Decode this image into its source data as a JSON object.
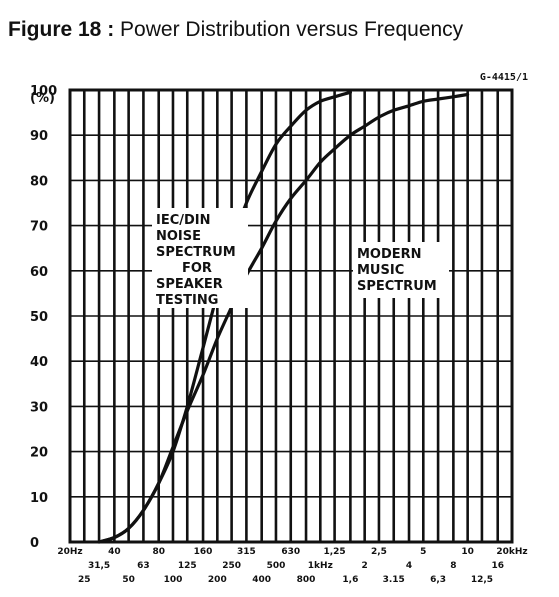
{
  "figure": {
    "label": "Figure 18 :",
    "text": "Power Distribution versus Frequency",
    "code": "G-4415/1"
  },
  "chart_data": {
    "type": "line",
    "ylabel": "(%)",
    "ylim": [
      0,
      100
    ],
    "yticks": [
      "0",
      "10",
      "20",
      "30",
      "40",
      "50",
      "60",
      "70",
      "80",
      "90",
      "100"
    ],
    "xscale": "log",
    "xlim_hz": [
      20,
      20000
    ],
    "xticks_upper": [
      {
        "hz": 20,
        "label": "20Hz"
      },
      {
        "hz": 40,
        "label": "40"
      },
      {
        "hz": 80,
        "label": "80"
      },
      {
        "hz": 160,
        "label": "160"
      },
      {
        "hz": 315,
        "label": "315"
      },
      {
        "hz": 630,
        "label": "630"
      },
      {
        "hz": 1250,
        "label": "1,25"
      },
      {
        "hz": 2500,
        "label": "2,5"
      },
      {
        "hz": 5000,
        "label": "5"
      },
      {
        "hz": 10000,
        "label": "10"
      },
      {
        "hz": 20000,
        "label": "20kHz"
      }
    ],
    "xticks_middle": [
      {
        "hz": 31.5,
        "label": "31,5"
      },
      {
        "hz": 63,
        "label": "63"
      },
      {
        "hz": 125,
        "label": "125"
      },
      {
        "hz": 250,
        "label": "250"
      },
      {
        "hz": 500,
        "label": "500"
      },
      {
        "hz": 1000,
        "label": "1kHz"
      },
      {
        "hz": 2000,
        "label": "2"
      },
      {
        "hz": 4000,
        "label": "4"
      },
      {
        "hz": 8000,
        "label": "8"
      },
      {
        "hz": 16000,
        "label": "16"
      }
    ],
    "xticks_lower": [
      {
        "hz": 25,
        "label": "25"
      },
      {
        "hz": 50,
        "label": "50"
      },
      {
        "hz": 100,
        "label": "100"
      },
      {
        "hz": 200,
        "label": "200"
      },
      {
        "hz": 400,
        "label": "400"
      },
      {
        "hz": 800,
        "label": "800"
      },
      {
        "hz": 1600,
        "label": "1,6"
      },
      {
        "hz": 3150,
        "label": "3.15"
      },
      {
        "hz": 6300,
        "label": "6,3"
      },
      {
        "hz": 12500,
        "label": "12,5"
      }
    ],
    "grid": true,
    "series": [
      {
        "name": "IEC/DIN NOISE SPECTRUM FOR SPEAKER TESTING",
        "label_lines": [
          "IEC/DIN",
          "NOISE",
          "SPECTRUM",
          "FOR",
          "SPEAKER",
          "TESTING"
        ],
        "points": [
          [
            31.5,
            0
          ],
          [
            40,
            1
          ],
          [
            50,
            3
          ],
          [
            63,
            7
          ],
          [
            80,
            13
          ],
          [
            100,
            20
          ],
          [
            125,
            30
          ],
          [
            160,
            43
          ],
          [
            200,
            55
          ],
          [
            250,
            66
          ],
          [
            315,
            75
          ],
          [
            400,
            82
          ],
          [
            500,
            88
          ],
          [
            630,
            92
          ],
          [
            800,
            95.5
          ],
          [
            1000,
            97.5
          ],
          [
            1250,
            98.5
          ],
          [
            1600,
            99.5
          ]
        ]
      },
      {
        "name": "MODERN MUSIC SPECTRUM",
        "label_lines": [
          "MODERN",
          "MUSIC",
          "SPECTRUM"
        ],
        "points": [
          [
            31.5,
            0
          ],
          [
            40,
            1
          ],
          [
            50,
            3
          ],
          [
            63,
            7
          ],
          [
            80,
            13
          ],
          [
            100,
            21
          ],
          [
            125,
            29
          ],
          [
            160,
            37
          ],
          [
            200,
            45
          ],
          [
            250,
            52
          ],
          [
            315,
            59
          ],
          [
            400,
            65
          ],
          [
            500,
            71
          ],
          [
            630,
            76
          ],
          [
            800,
            80
          ],
          [
            1000,
            84
          ],
          [
            1250,
            87
          ],
          [
            1600,
            90
          ],
          [
            2000,
            92
          ],
          [
            2500,
            94
          ],
          [
            3150,
            95.5
          ],
          [
            4000,
            96.5
          ],
          [
            5000,
            97.5
          ],
          [
            6300,
            98
          ],
          [
            8000,
            98.5
          ],
          [
            10000,
            99
          ]
        ]
      }
    ]
  }
}
